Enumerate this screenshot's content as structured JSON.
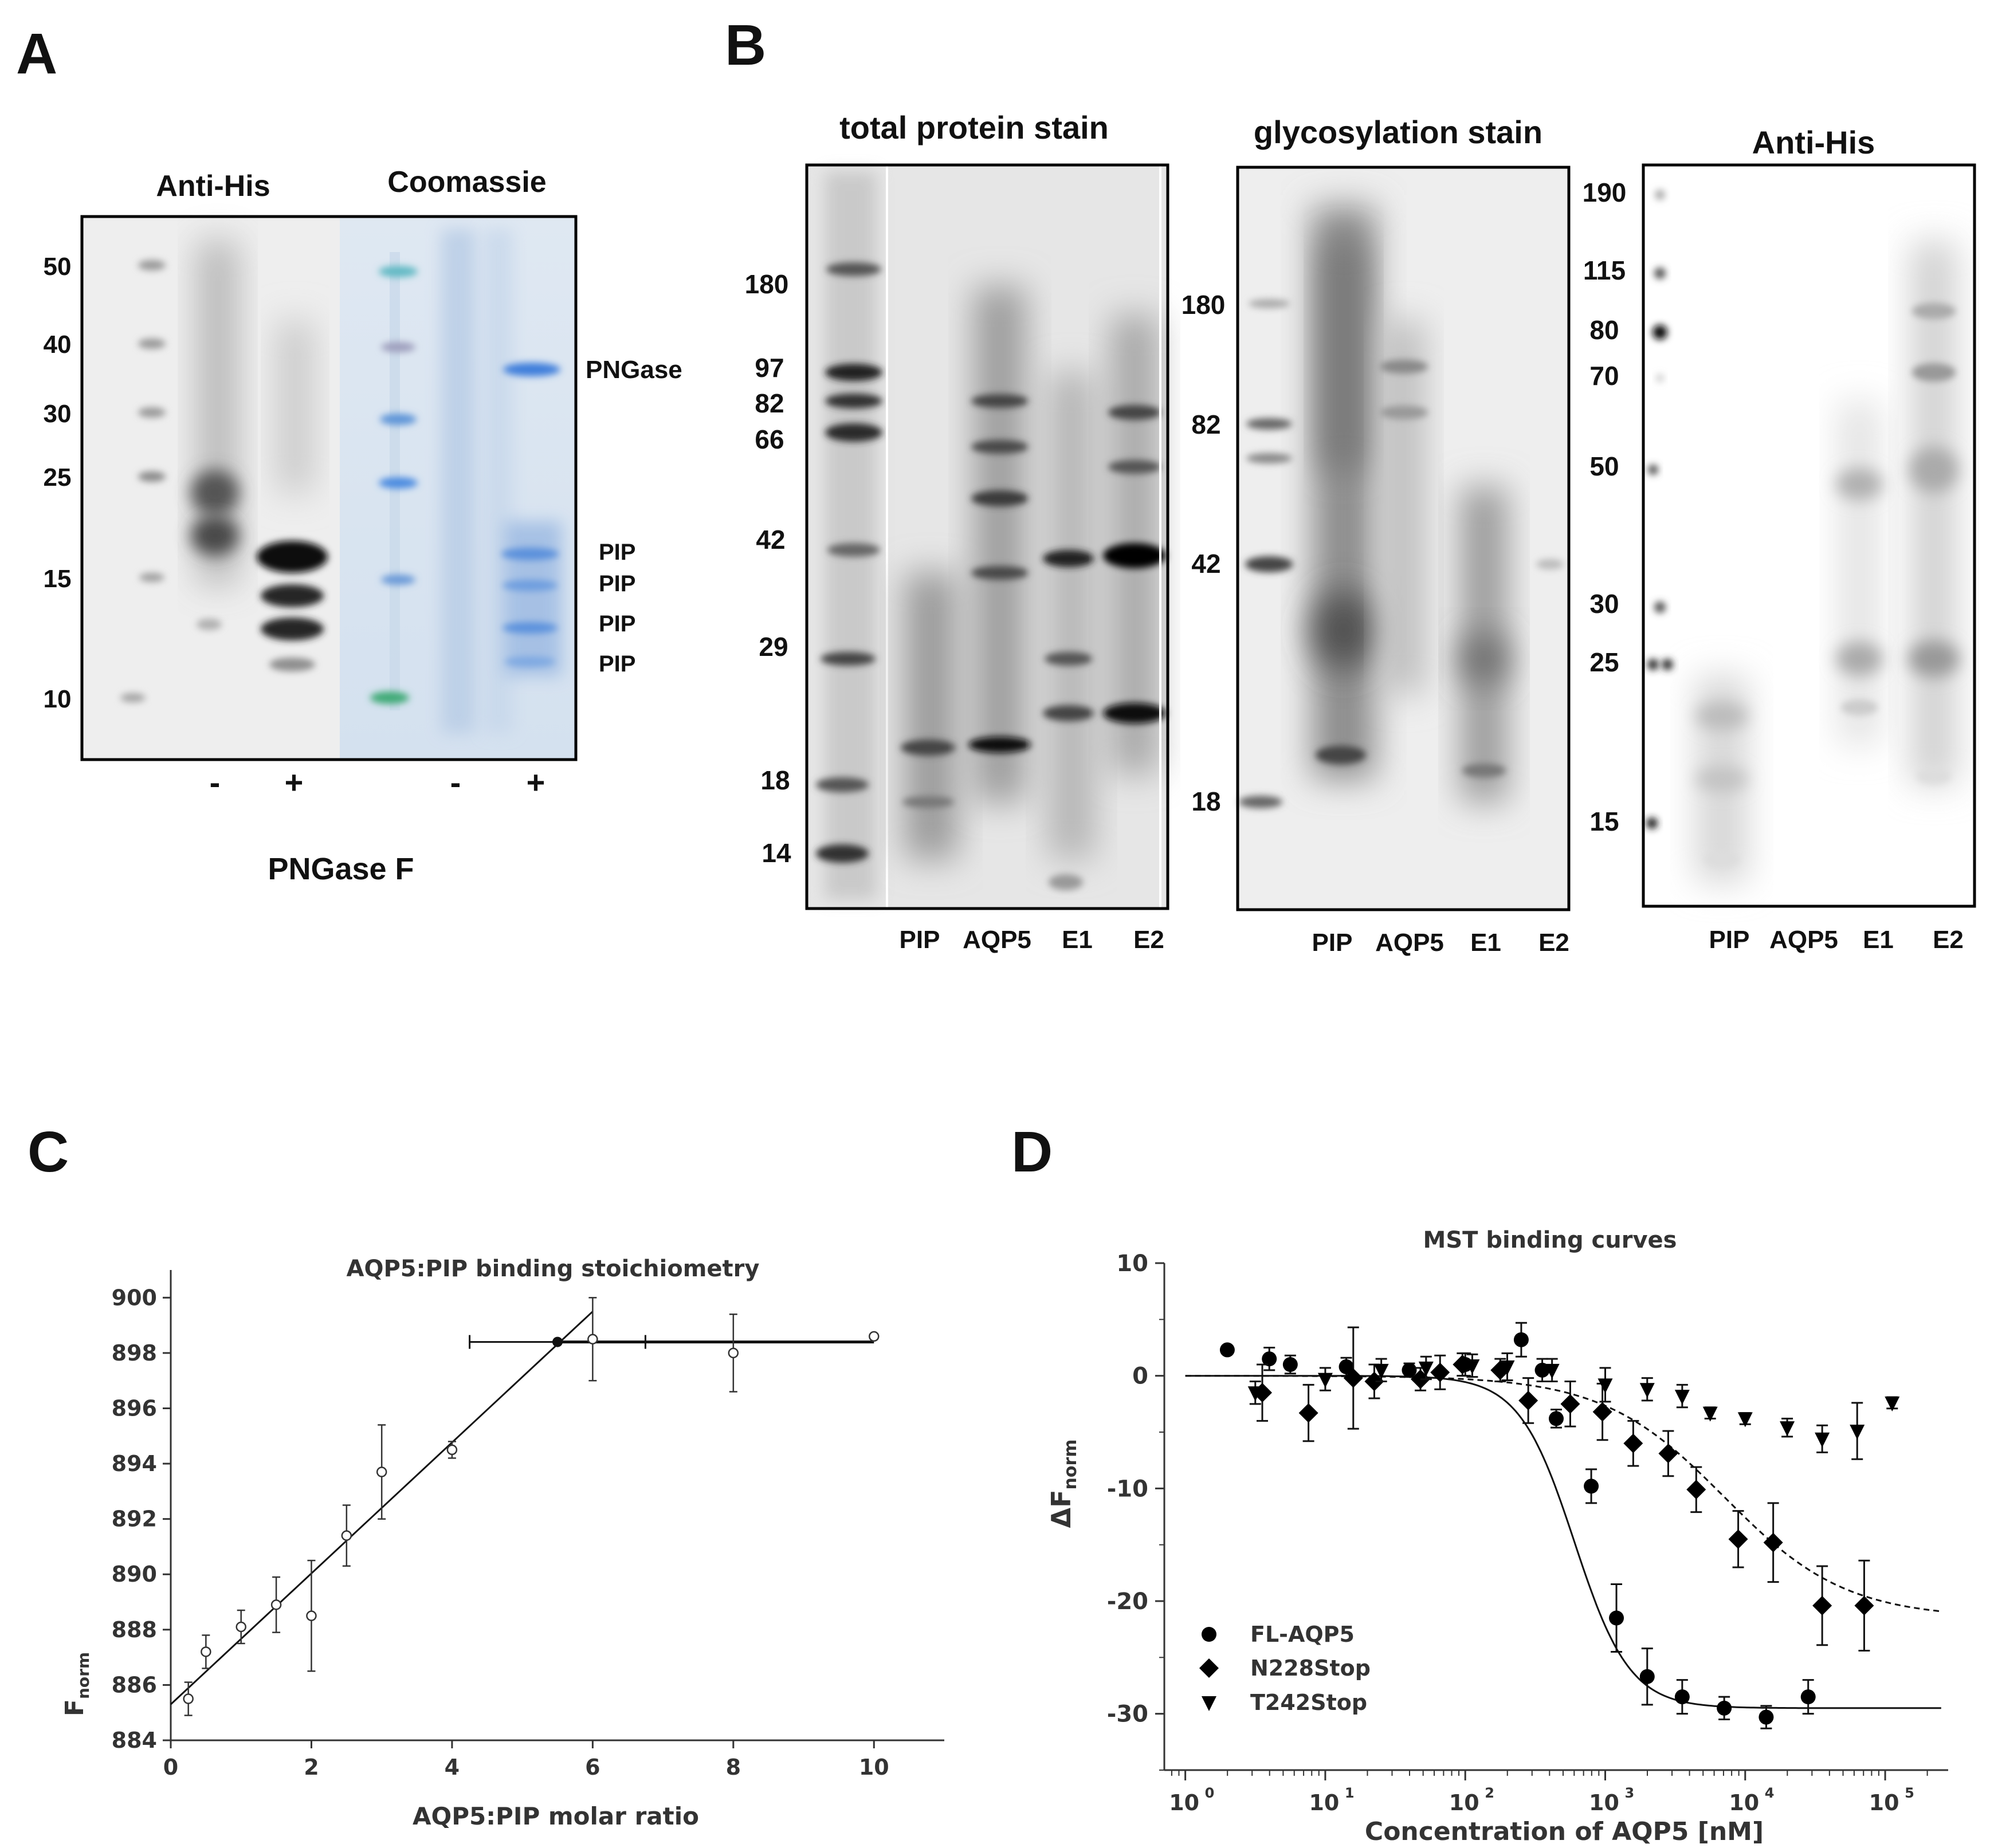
{
  "panel_labels": [
    "A",
    "B",
    "C",
    "D"
  ],
  "panel_a": {
    "title_left": "Anti-His",
    "title_right": "Coomassie",
    "mw_markers": [
      "50",
      "40",
      "30",
      "25",
      "15",
      "10"
    ],
    "right_labels": [
      "PNGase",
      "PIP",
      "PIP",
      "PIP",
      "PIP"
    ],
    "lane_signs": [
      "-",
      "+",
      "-",
      "+"
    ],
    "xlabel": "PNGase F"
  },
  "panel_b": {
    "gel1": {
      "title": "total protein stain",
      "markers": [
        "180",
        "97",
        "82",
        "66",
        "42",
        "29",
        "18",
        "14"
      ],
      "lanes": [
        "PIP",
        "AQP5",
        "E1",
        "E2"
      ]
    },
    "gel2": {
      "title": "glycosylation stain",
      "markers": [
        "180",
        "82",
        "42",
        "18"
      ],
      "lanes": [
        "PIP",
        "AQP5",
        "E1",
        "E2"
      ]
    },
    "gel3": {
      "title": "Anti-His",
      "markers": [
        "190",
        "115",
        "80",
        "70",
        "50",
        "30",
        "25",
        "15"
      ],
      "lanes": [
        "PIP",
        "AQP5",
        "E1",
        "E2"
      ]
    }
  },
  "chart_data": [
    {
      "id": "C",
      "type": "scatter",
      "title": "AQP5:PIP binding stoichiometry",
      "xlabel": "AQP5:PIP molar ratio",
      "ylabel": "F",
      "ylabel_sub": "norm",
      "xlim": [
        0,
        11
      ],
      "ylim": [
        884,
        901
      ],
      "xticks": [
        0,
        2,
        4,
        6,
        8,
        10
      ],
      "yticks": [
        884,
        886,
        888,
        890,
        892,
        894,
        896,
        898,
        900
      ],
      "points": [
        {
          "x": 0.25,
          "y": 885.5,
          "err": 0.6
        },
        {
          "x": 0.5,
          "y": 887.2,
          "err": 0.6
        },
        {
          "x": 1.0,
          "y": 888.1,
          "err": 0.6
        },
        {
          "x": 1.5,
          "y": 888.9,
          "err": 1.0
        },
        {
          "x": 2.0,
          "y": 888.5,
          "err": 2.0
        },
        {
          "x": 2.5,
          "y": 891.4,
          "err": 1.1
        },
        {
          "x": 3.0,
          "y": 893.7,
          "err": 1.7
        },
        {
          "x": 4.0,
          "y": 894.5,
          "err": 0.3
        },
        {
          "x": 6.0,
          "y": 898.5,
          "err": 1.5
        },
        {
          "x": 8.0,
          "y": 898.0,
          "err": 1.4
        },
        {
          "x": 10.0,
          "y": 898.6,
          "err": 0.1
        }
      ],
      "fit_rising": {
        "x": [
          0,
          6
        ],
        "y": [
          885.3,
          899.5
        ]
      },
      "fit_plateau": {
        "x": [
          5.5,
          10
        ],
        "y": [
          898.4,
          898.4
        ]
      },
      "break_point": {
        "x": 5.5,
        "y": 898.4,
        "xerr_low": 4.25,
        "xerr_high": 6.75
      }
    },
    {
      "id": "D",
      "type": "scatter",
      "title": "MST binding curves",
      "xlabel": "Concentration of AQP5 [nM]",
      "ylabel": "ΔF",
      "ylabel_sub": "norm",
      "xscale": "log",
      "xlim_log10": [
        -0.15,
        5.45
      ],
      "ylim": [
        -35,
        10
      ],
      "xtick_base": "10",
      "xtick_exponents": [
        "0",
        "1",
        "2",
        "3",
        "4",
        "5"
      ],
      "yticks": [
        10,
        0,
        -10,
        -20,
        -30
      ],
      "legend_position": "bottom-left",
      "series": [
        {
          "name": "FL-AQP5",
          "marker": "circle",
          "fit": {
            "bottom": -29.5,
            "log_ec50": 2.78,
            "hill": 2.2,
            "style": "solid"
          },
          "log_x": [
            0.3,
            0.6,
            0.75,
            1.15,
            1.6,
            2.0,
            2.4,
            2.55,
            2.65,
            2.9,
            3.08,
            3.3,
            3.55,
            3.85,
            4.15,
            4.45
          ],
          "y": [
            2.3,
            1.5,
            1.0,
            0.8,
            0.5,
            1.0,
            3.2,
            0.5,
            -3.8,
            -9.8,
            -21.5,
            -26.7,
            -28.5,
            -29.5,
            -30.3,
            -28.5
          ],
          "err": [
            0.3,
            1.0,
            0.8,
            0.8,
            0.6,
            1.0,
            1.5,
            1.0,
            0.8,
            1.5,
            3.0,
            2.5,
            1.5,
            1.0,
            1.0,
            1.5
          ]
        },
        {
          "name": "N228Stop",
          "marker": "diamond",
          "fit": {
            "bottom": -21.5,
            "log_ec50": 3.85,
            "hill": 1.0,
            "style": "dashed"
          },
          "log_x": [
            0.55,
            0.88,
            1.2,
            1.35,
            1.68,
            1.82,
            1.98,
            2.25,
            2.45,
            2.75,
            2.98,
            3.2,
            3.45,
            3.65,
            3.95,
            4.2,
            4.55,
            4.85
          ],
          "y": [
            -1.5,
            -3.3,
            -0.2,
            -0.5,
            -0.3,
            0.3,
            1.0,
            0.5,
            -2.2,
            -2.5,
            -3.2,
            -6.0,
            -6.9,
            -10.1,
            -14.5,
            -14.8,
            -20.4,
            -20.4
          ],
          "err": [
            2.5,
            2.5,
            4.5,
            1.5,
            1.0,
            1.5,
            1.0,
            1.0,
            2.0,
            2.0,
            2.5,
            2.0,
            2.0,
            2.0,
            2.5,
            3.5,
            3.5,
            4.0
          ],
          "display_log_x": [
            0.55,
            0.88,
            1.2,
            1.35,
            1.68,
            1.82,
            1.98,
            2.25,
            2.45,
            2.75,
            2.98,
            3.2,
            3.45,
            3.65,
            3.95,
            4.2,
            4.55,
            4.85
          ]
        },
        {
          "name": "T242Stop",
          "marker": "triangle-down",
          "log_x": [
            0.5,
            1.0,
            1.4,
            1.72,
            2.05,
            2.3,
            2.62,
            3.0,
            3.3,
            3.55,
            3.75,
            4.0,
            4.3,
            4.55,
            4.8,
            5.05
          ],
          "y": [
            -1.5,
            -0.3,
            0.5,
            0.7,
            0.9,
            0.8,
            0.5,
            -0.8,
            -1.2,
            -1.8,
            -3.3,
            -3.8,
            -4.6,
            -5.6,
            -4.9,
            -2.4
          ],
          "err": [
            1.0,
            1.0,
            1.0,
            1.0,
            1.0,
            1.2,
            1.0,
            1.5,
            1.0,
            1.0,
            0.5,
            0.5,
            0.8,
            1.2,
            2.5,
            0.5
          ]
        }
      ]
    }
  ]
}
